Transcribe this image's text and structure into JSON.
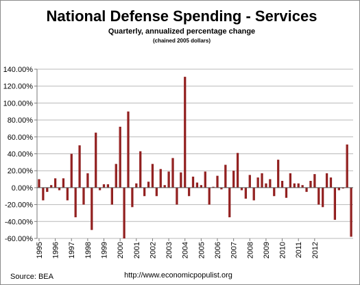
{
  "chart_data": {
    "type": "bar",
    "title": "National Defense Spending - Services",
    "subtitle": "Quarterly, annualized  percentage change",
    "subtitle2": "(chained 2005 dollars)",
    "ylim": [
      -60,
      140
    ],
    "yticks": [
      140,
      120,
      100,
      80,
      60,
      40,
      20,
      0,
      -20,
      -40,
      -60
    ],
    "ytick_labels": [
      "140.00%",
      "120.00%",
      "100.00%",
      "80.00%",
      "60.00%",
      "40.00%",
      "20.00%",
      "0.00%",
      "-20.00%",
      "-40.00%",
      "-60.00%"
    ],
    "xtick_labels": [
      "1995",
      "1996",
      "1997",
      "1998",
      "1999",
      "2000",
      "2001",
      "2002",
      "2003",
      "2004",
      "2005",
      "2006",
      "2007",
      "2008",
      "2009",
      "2010",
      "2011",
      "2012"
    ],
    "grid": true,
    "bar_color": "#8b1a1a",
    "values": [
      10,
      -15,
      -5,
      3,
      11,
      -3,
      11,
      -15,
      40,
      -35,
      50,
      -20,
      17,
      -50,
      65,
      -3,
      4,
      4,
      -20,
      28,
      72,
      -62,
      90,
      -23,
      5,
      43,
      -10,
      7,
      28,
      -10,
      22,
      3,
      19,
      35,
      -20,
      18,
      131,
      -10,
      13,
      6,
      3,
      19,
      -20,
      1,
      14,
      -2,
      27,
      -35,
      20,
      41,
      -3,
      -13,
      15,
      -15,
      12,
      17,
      5,
      10,
      -10,
      33,
      8,
      -12,
      17,
      5,
      5,
      3,
      -5,
      8,
      16,
      -20,
      -23,
      17,
      12,
      -38,
      -3,
      -1,
      51,
      -58
    ]
  },
  "footer": {
    "source": "Source:  BEA",
    "url": "http://www.economicpopulist.org"
  },
  "colors": {
    "bar": "#8b1a1a",
    "grid": "#b8b8b8",
    "axis": "#777777"
  }
}
